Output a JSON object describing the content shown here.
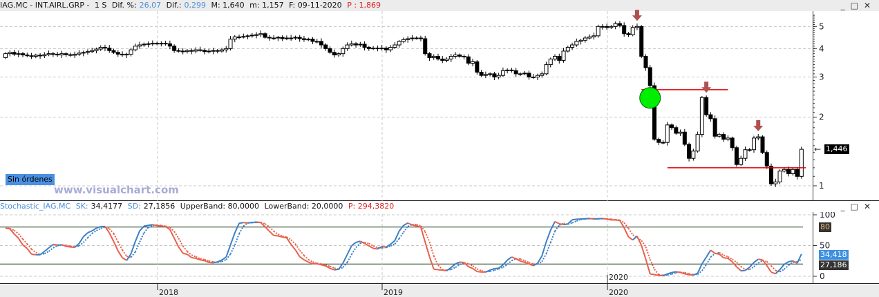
{
  "header": {
    "symbol": "IAG.MC - INT.AIRL.GRP -",
    "period": "1 S",
    "dif_pct_label": "Dif. %:",
    "dif_pct": "26,07",
    "dif_label": "Dif.:",
    "dif": "0,299",
    "max_label": "M: 1,640",
    "min_label": "m: 1,157",
    "date_label": "F: 09-11-2020",
    "p_label": "P : 1,869"
  },
  "orders_badge": "Sin órdenes",
  "watermark": "www.visualchart.com",
  "stoch_header": {
    "name": "Stochastic_IAG.MC",
    "sk_label": "SK:",
    "sk": "34,4177",
    "sd_label": "SD:",
    "sd": "27,1856",
    "upper": "UpperBand: 80,0000",
    "lower": "LowerBand: 20,0000",
    "p": "P: 294,3820"
  },
  "colors": {
    "rising": "#3d7fc4",
    "falling": "#e8604c",
    "level_line": "#e00000",
    "circle": "#00ee00",
    "arrow": "#b05050",
    "last_price_bg": "#000000",
    "sk_bg": "#3d8fe0"
  },
  "chart_data": [
    {
      "type": "candlestick",
      "scale": "log",
      "ylim": [
        0.95,
        5.6
      ],
      "yticks": [
        "1",
        "2",
        "3",
        "4",
        "5"
      ],
      "grid": true,
      "x_labels": [
        "2018",
        "2019",
        "2020"
      ],
      "last_price": "1,446",
      "closes": [
        3.8,
        3.85,
        3.78,
        3.8,
        3.75,
        3.72,
        3.7,
        3.74,
        3.72,
        3.76,
        3.8,
        3.78,
        3.75,
        3.8,
        3.76,
        3.74,
        3.78,
        3.82,
        3.85,
        3.88,
        3.92,
        3.98,
        4.05,
        4.02,
        3.92,
        3.85,
        3.78,
        3.75,
        3.78,
        3.95,
        4.1,
        4.15,
        4.18,
        4.2,
        4.22,
        4.2,
        4.22,
        4.2,
        4.1,
        3.92,
        3.9,
        3.88,
        3.92,
        3.9,
        3.95,
        3.93,
        3.88,
        3.9,
        3.92,
        3.9,
        3.95,
        4.0,
        4.4,
        4.5,
        4.5,
        4.52,
        4.55,
        4.58,
        4.6,
        4.65,
        4.48,
        4.45,
        4.45,
        4.48,
        4.42,
        4.45,
        4.45,
        4.48,
        4.42,
        4.38,
        4.4,
        4.3,
        4.3,
        4.15,
        4.0,
        3.85,
        3.75,
        3.8,
        4.0,
        4.15,
        4.2,
        4.15,
        4.18,
        4.05,
        4.0,
        4.02,
        4.0,
        4.02,
        3.95,
        4.05,
        4.15,
        4.3,
        4.38,
        4.42,
        4.45,
        4.45,
        4.42,
        3.8,
        3.65,
        3.7,
        3.6,
        3.55,
        3.6,
        3.7,
        3.75,
        3.7,
        3.68,
        3.45,
        3.5,
        3.15,
        3.05,
        3.08,
        3.1,
        3.0,
        3.05,
        3.2,
        3.22,
        3.2,
        3.1,
        3.1,
        3.12,
        3.0,
        3.0,
        3.05,
        3.1,
        3.4,
        3.6,
        3.7,
        3.55,
        3.9,
        4.05,
        4.15,
        4.3,
        4.35,
        4.45,
        4.5,
        4.55,
        5.0,
        5.0,
        4.95,
        5.0,
        5.15,
        5.05,
        4.65,
        4.6,
        4.95,
        5.0,
        3.7,
        3.3,
        2.75,
        1.6,
        1.55,
        1.55,
        1.85,
        1.8,
        1.7,
        1.72,
        1.52,
        1.32,
        1.42,
        1.68,
        2.44,
        2.05,
        1.97,
        1.65,
        1.68,
        1.6,
        1.62,
        1.47,
        1.24,
        1.32,
        1.44,
        1.44,
        1.62,
        1.64,
        1.4,
        1.22,
        1.02,
        1.04,
        1.16,
        1.18,
        1.13,
        1.18,
        1.1,
        1.446
      ],
      "annotations": {
        "down_arrows_at_index": [
          146,
          162,
          174
        ],
        "level_lines": [
          {
            "price": 2.64,
            "from_index": 147,
            "to_index": 167
          },
          {
            "price": 1.2,
            "from_index": 153,
            "to_index": 185
          }
        ],
        "circle": {
          "index": 149,
          "price": 2.43
        }
      }
    },
    {
      "type": "line",
      "name": "Stochastic",
      "ylim": [
        0,
        100
      ],
      "yticks": [
        "0",
        "50",
        "100"
      ],
      "bands": [
        80,
        20
      ],
      "sk_last": "34,418",
      "sd_last": "27,186",
      "upper_band_label": "80",
      "lower_band_label": "20",
      "x_labels": [
        "2018",
        "2019",
        "2020"
      ],
      "inner_label": "2020"
    }
  ]
}
